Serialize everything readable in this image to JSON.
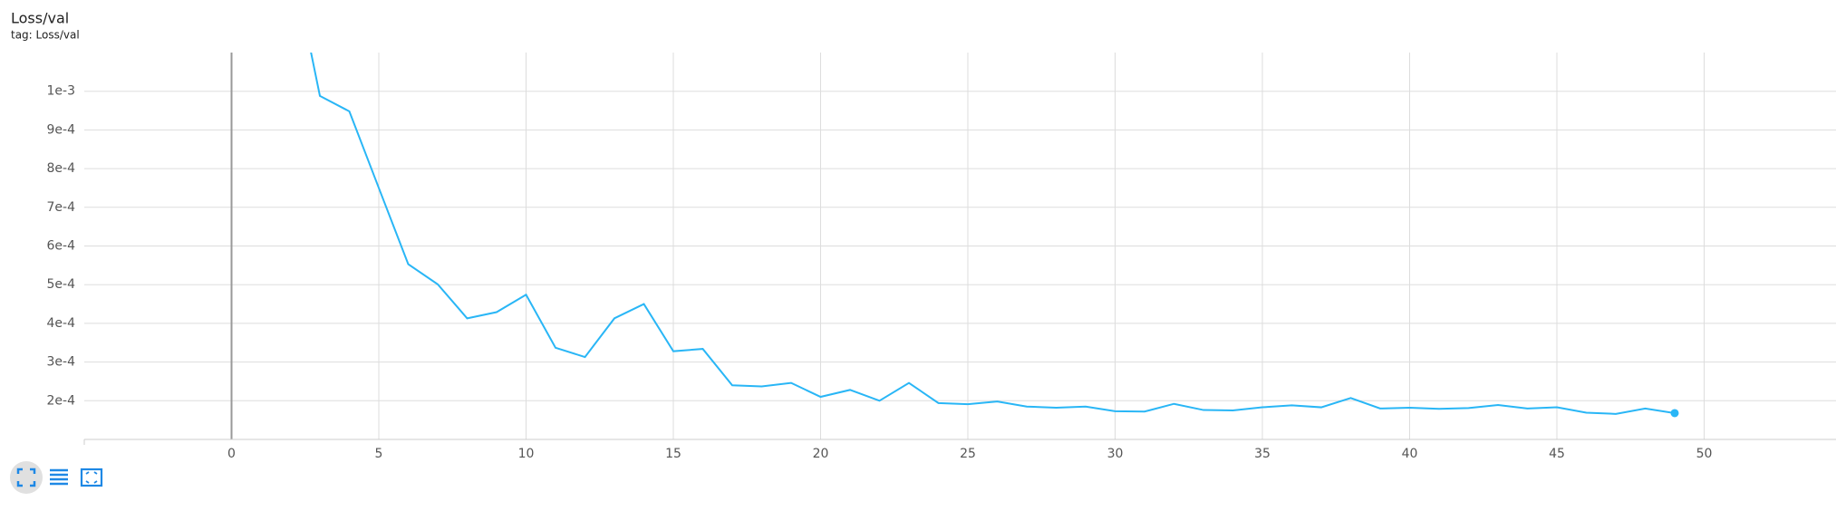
{
  "chart_data": {
    "type": "line",
    "title": "Loss/val",
    "subtitle": "tag: Loss/val",
    "x": [
      2,
      3,
      4,
      5,
      6,
      7,
      8,
      9,
      10,
      11,
      12,
      13,
      14,
      15,
      16,
      17,
      18,
      19,
      20,
      21,
      22,
      23,
      24,
      25,
      26,
      27,
      28,
      29,
      30,
      31,
      32,
      33,
      34,
      35,
      36,
      37,
      38,
      39,
      40,
      41,
      42,
      43,
      44,
      45,
      46,
      47,
      48,
      49
    ],
    "values": [
      0.00136,
      0.000988,
      0.000948,
      0.00075,
      0.000553,
      0.000501,
      0.000413,
      0.000429,
      0.000474,
      0.000337,
      0.000313,
      0.000413,
      0.00045,
      0.000328,
      0.000334,
      0.00024,
      0.000237,
      0.000246,
      0.00021,
      0.000228,
      0.0002,
      0.000246,
      0.000194,
      0.000191,
      0.000198,
      0.000185,
      0.000182,
      0.000185,
      0.000173,
      0.000172,
      0.000192,
      0.000176,
      0.000175,
      0.000183,
      0.000188,
      0.000183,
      0.000207,
      0.00018,
      0.000182,
      0.000179,
      0.000181,
      0.000189,
      0.00018,
      0.000183,
      0.000169,
      0.000166,
      0.00018,
      0.000168
    ],
    "color": "#29b6f6",
    "xlim": [
      -5,
      55
    ],
    "xticks": [
      0,
      5,
      10,
      15,
      20,
      25,
      30,
      35,
      40,
      45,
      50
    ],
    "ylim": [
      0.0001,
      0.0011
    ],
    "yticks": [
      {
        "value": 0.0002,
        "label": "2e-4"
      },
      {
        "value": 0.0003,
        "label": "3e-4"
      },
      {
        "value": 0.0004,
        "label": "4e-4"
      },
      {
        "value": 0.0005,
        "label": "5e-4"
      },
      {
        "value": 0.0006,
        "label": "6e-4"
      },
      {
        "value": 0.0007,
        "label": "7e-4"
      },
      {
        "value": 0.0008,
        "label": "8e-4"
      },
      {
        "value": 0.0009,
        "label": "9e-4"
      },
      {
        "value": 0.001,
        "label": "1e-3"
      }
    ],
    "grid": true
  }
}
